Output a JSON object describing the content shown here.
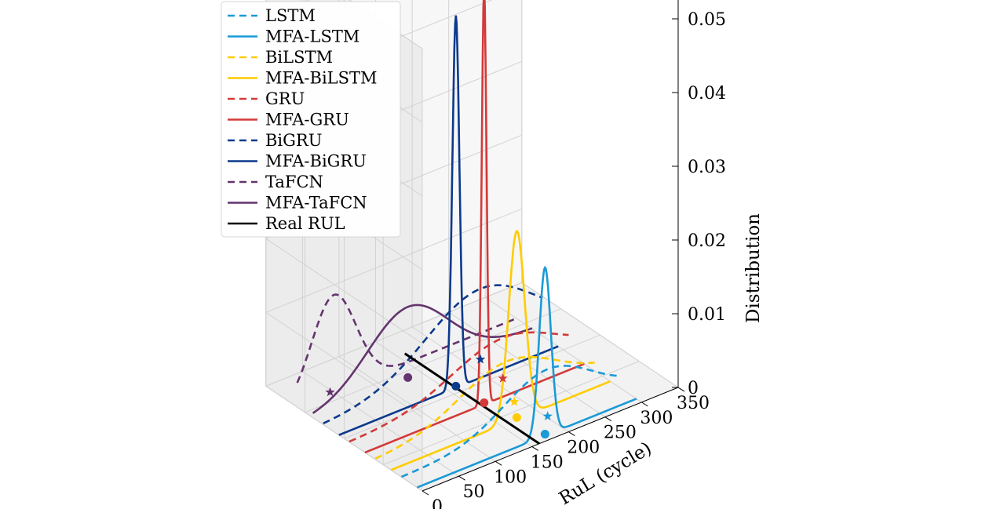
{
  "chart_data": {
    "type": "line",
    "view": "3d",
    "xlabel": "RuL (cycle)",
    "ylabel": "",
    "zlabel": "Distribution",
    "xlim": [
      0,
      350
    ],
    "zlim": [
      0,
      0.055
    ],
    "x_ticks": [
      "0",
      "50",
      "100",
      "150",
      "200",
      "250",
      "300",
      "350"
    ],
    "z_ticks": [
      "0",
      "0.01",
      "0.02",
      "0.03",
      "0.04",
      "0.05"
    ],
    "grid": true,
    "legend_position": "top-left",
    "real_rul": 160,
    "colors": {
      "lstm": "#1b9ad6",
      "bilstm": "#ffcc00",
      "gru": "#d33a3a",
      "bigru": "#0b3a8c",
      "tafcn": "#64346e",
      "real": "#000000"
    },
    "series": [
      {
        "name": "LSTM",
        "group": 0,
        "style": "dashed",
        "color_key": "lstm",
        "mu": 200,
        "sigma": 60,
        "peak": 0.0066,
        "marker": "star",
        "marker_x": 200
      },
      {
        "name": "MFA-LSTM",
        "group": 0,
        "style": "solid",
        "color_key": "lstm",
        "mu": 175,
        "sigma": 8,
        "peak": 0.0228,
        "marker": "circle",
        "marker_x": 175
      },
      {
        "name": "BiLSTM",
        "group": 1,
        "style": "dashed",
        "color_key": "bilstm",
        "mu": 180,
        "sigma": 65,
        "peak": 0.0061,
        "marker": "star",
        "marker_x": 190
      },
      {
        "name": "MFA-BiLSTM",
        "group": 1,
        "style": "solid",
        "color_key": "bilstm",
        "mu": 172,
        "sigma": 11,
        "peak": 0.0255,
        "marker": "circle",
        "marker_x": 172
      },
      {
        "name": "GRU",
        "group": 2,
        "style": "dashed",
        "color_key": "gru",
        "mu": 210,
        "sigma": 70,
        "peak": 0.0057,
        "marker": "star",
        "marker_x": 210
      },
      {
        "name": "MFA-GRU",
        "group": 2,
        "style": "solid",
        "color_key": "gru",
        "mu": 163,
        "sigma": 3.2,
        "peak": 0.0565,
        "marker": "circle",
        "marker_x": 163
      },
      {
        "name": "BiGRU",
        "group": 3,
        "style": "dashed",
        "color_key": "bigru",
        "mu": 215,
        "sigma": 75,
        "peak": 0.0098,
        "marker": "star",
        "marker_x": 215
      },
      {
        "name": "MFA-BiGRU",
        "group": 3,
        "style": "solid",
        "color_key": "bigru",
        "mu": 160,
        "sigma": 4.8,
        "peak": 0.0505,
        "marker": "circle",
        "marker_x": 160
      },
      {
        "name": "TaFCN",
        "group": 4,
        "style": "dashed",
        "color_key": "tafcn",
        "mu": 50,
        "sigma": 30,
        "peak": 0.0132,
        "marker": "star",
        "marker_x": 45
      },
      {
        "name": "MFA-TaFCN",
        "group": 4,
        "style": "solid",
        "color_key": "tafcn",
        "mu": 130,
        "sigma": 55,
        "peak": 0.0098,
        "marker": "circle",
        "marker_x": 130
      },
      {
        "name": "Real RUL",
        "style": "solid",
        "color_key": "real"
      }
    ]
  }
}
